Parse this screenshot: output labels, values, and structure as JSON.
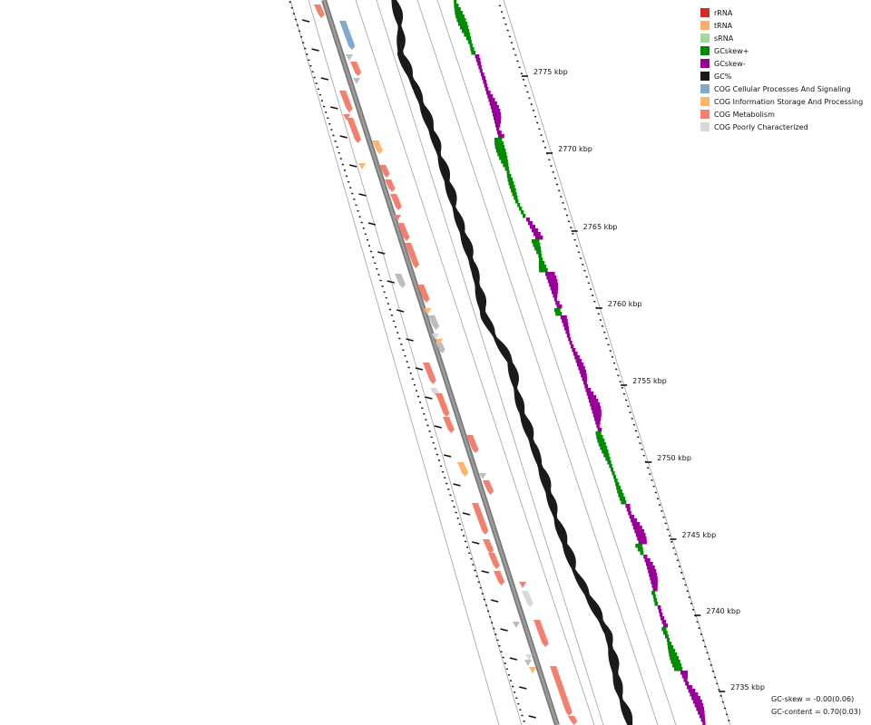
{
  "legend": {
    "items": [
      {
        "label": "rRNA",
        "color": "#d62728"
      },
      {
        "label": "tRNA",
        "color": "#fdae6b"
      },
      {
        "label": "sRNA",
        "color": "#a1d99b"
      },
      {
        "label": "GCskew+",
        "color": "#008c00"
      },
      {
        "label": "GCskew-",
        "color": "#990099"
      },
      {
        "label": "GC%",
        "color": "#1a1a1a"
      },
      {
        "label": "COG Cellular Processes And Signaling",
        "color": "#7fa9cf"
      },
      {
        "label": "COG Information Storage And Processing",
        "color": "#fdb46d"
      },
      {
        "label": "COG Metabolism",
        "color": "#f57f6f"
      },
      {
        "label": "COG Poorly Characterized",
        "color": "#d9d9d9"
      }
    ]
  },
  "coordinate_labels": [
    "2775 kbp",
    "2770 kbp",
    "2765 kbp",
    "2760 kbp",
    "2755 kbp",
    "2750 kbp",
    "2745 kbp",
    "2740 kbp",
    "2735 kbp"
  ],
  "stats": {
    "gc_skew": "GC-skew = -0.00(0.06)",
    "gc_content": "GC-content = 0.70(0.03)"
  }
}
